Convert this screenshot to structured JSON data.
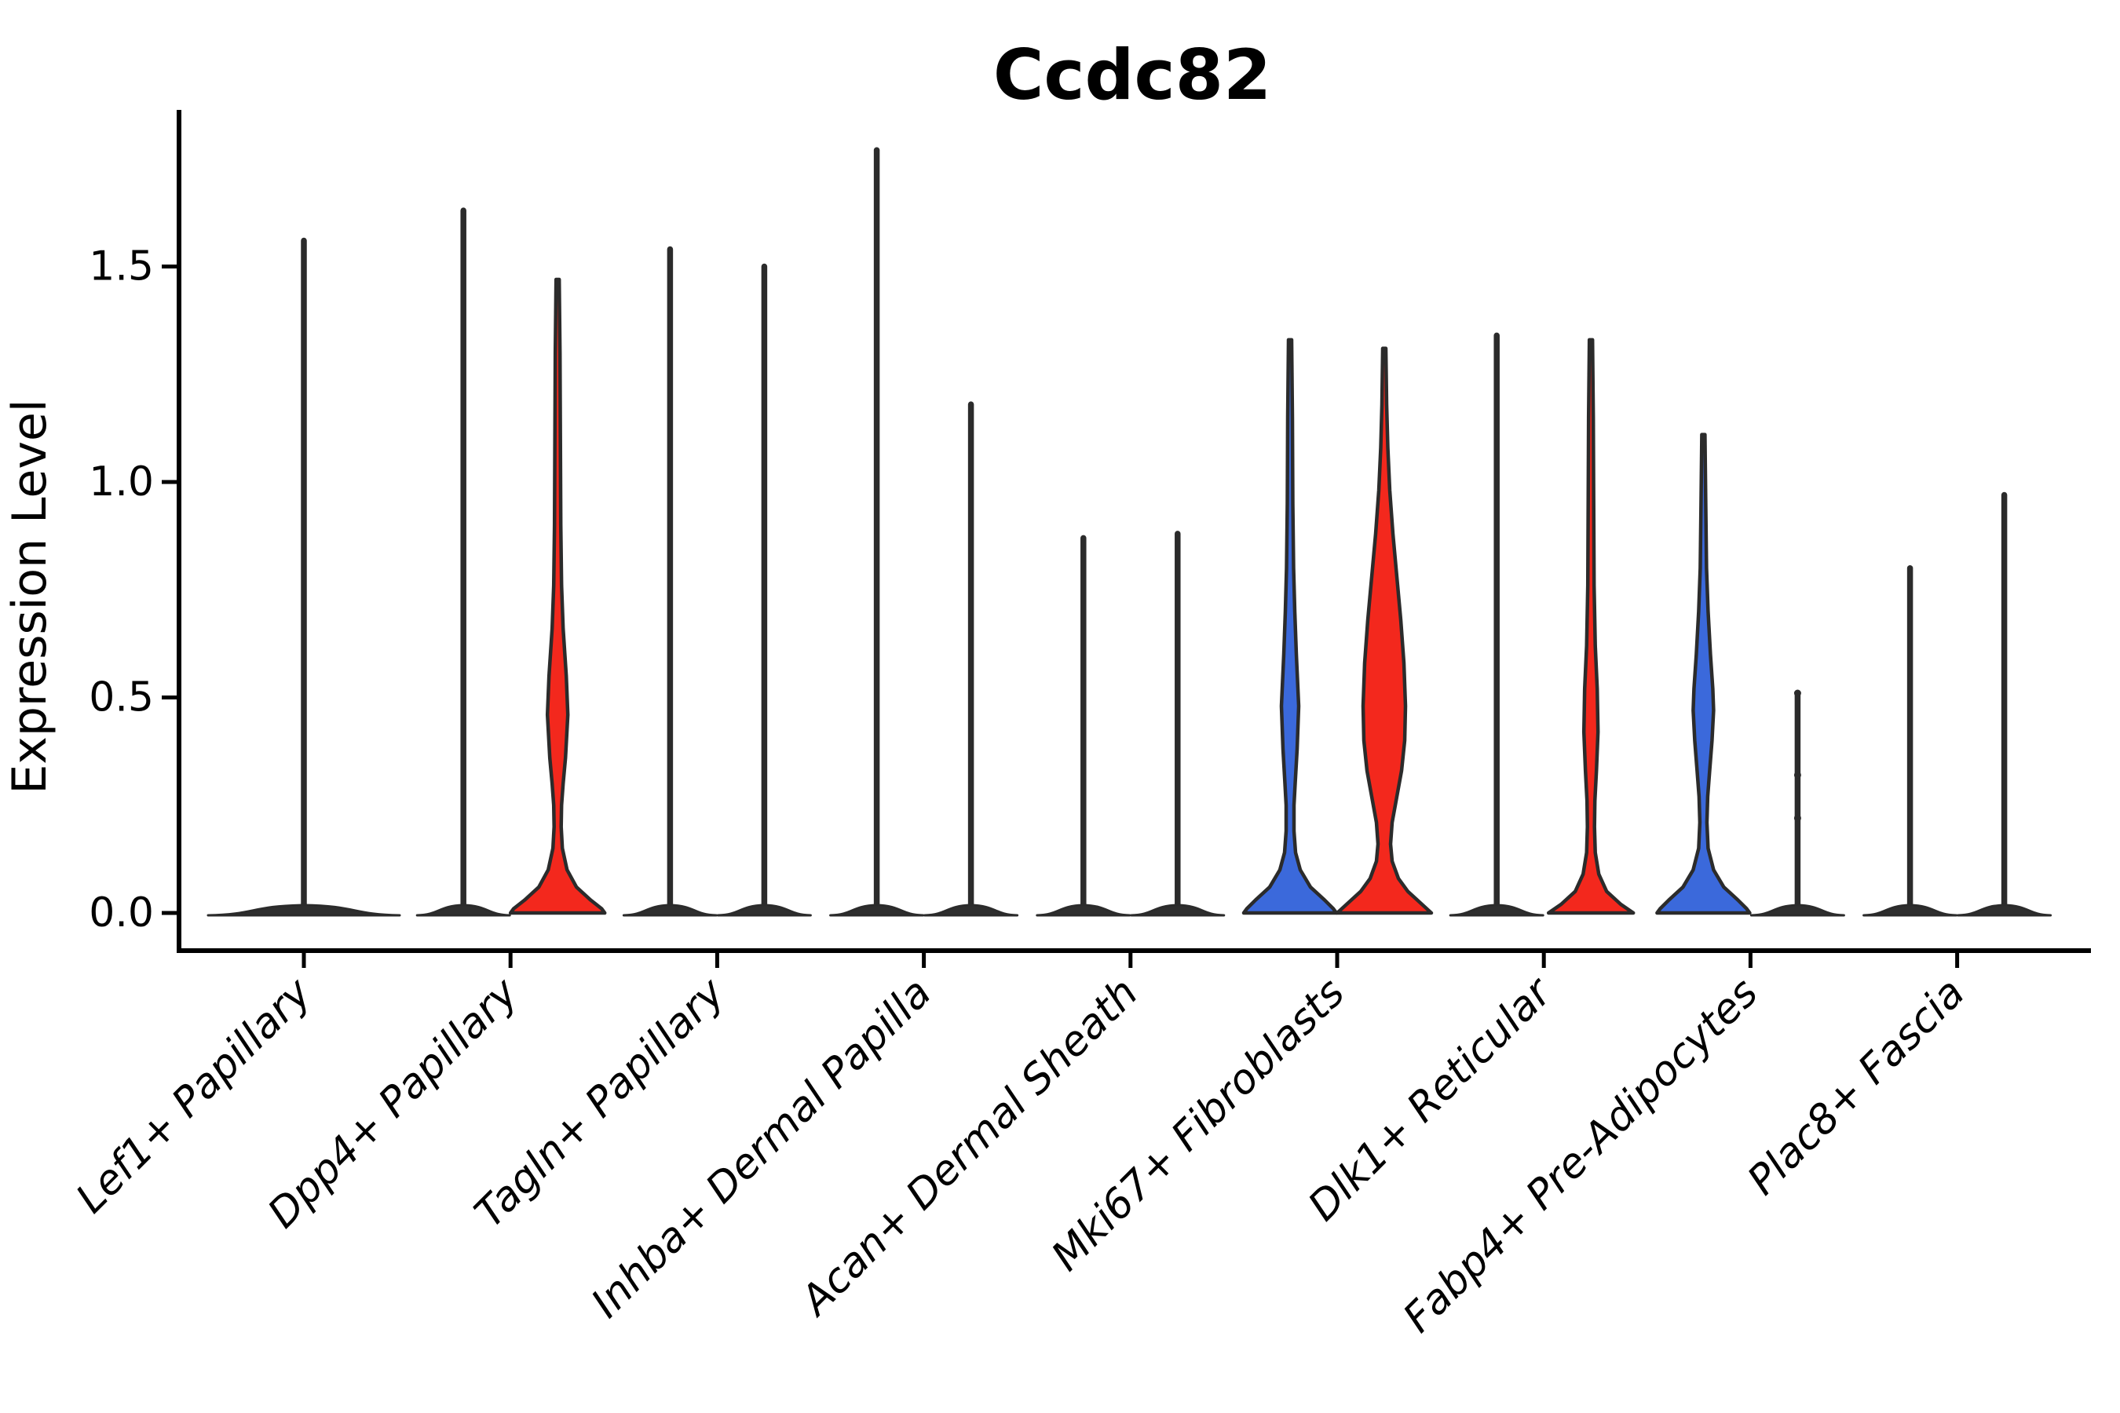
{
  "title": "Ccdc82",
  "axes": {
    "y_label": "Expression Level",
    "y_tick_labels": [
      "0.0",
      "0.5",
      "1.0",
      "1.5"
    ]
  },
  "chart_data": {
    "type": "violin",
    "title": "Ccdc82",
    "xlabel": "",
    "ylabel": "Expression Level",
    "ylim": [
      0,
      1.85
    ],
    "yticks": [
      0.0,
      0.5,
      1.0,
      1.5
    ],
    "grid": false,
    "legend": "none",
    "colors": {
      "red": "#F3281D",
      "blue": "#3B69DB",
      "line": "#2B2B2B",
      "base": "#2E2E2E",
      "spine": "#000000"
    },
    "categories": [
      {
        "label": "Lef1+ Papillary",
        "violins": [
          {
            "side": "center",
            "kind": "spike",
            "color_key": "line",
            "max": 1.56,
            "base_halfwidth": 122
          }
        ]
      },
      {
        "label": "Dpp4+ Papillary",
        "violins": [
          {
            "side": "left",
            "kind": "spike",
            "color_key": "line",
            "max": 1.63,
            "base_halfwidth": 59
          },
          {
            "side": "right",
            "kind": "violin",
            "color_key": "red",
            "max": 1.47,
            "profile": [
              [
                1.47,
                2
              ],
              [
                1.3,
                3
              ],
              [
                1.1,
                3.5
              ],
              [
                0.9,
                4
              ],
              [
                0.76,
                5
              ],
              [
                0.66,
                7
              ],
              [
                0.55,
                11
              ],
              [
                0.46,
                13
              ],
              [
                0.36,
                10
              ],
              [
                0.3,
                7
              ],
              [
                0.25,
                5
              ],
              [
                0.2,
                4.5
              ],
              [
                0.15,
                6
              ],
              [
                0.1,
                12
              ],
              [
                0.06,
                24
              ],
              [
                0.03,
                42
              ],
              [
                0.01,
                56
              ],
              [
                0,
                60
              ]
            ]
          }
        ]
      },
      {
        "label": "Tagln+ Papillary",
        "violins": [
          {
            "side": "left",
            "kind": "spike",
            "color_key": "line",
            "max": 1.54,
            "base_halfwidth": 59
          },
          {
            "side": "right",
            "kind": "spike",
            "color_key": "line",
            "max": 1.5,
            "base_halfwidth": 59
          }
        ]
      },
      {
        "label": "Inhba+ Dermal Papilla",
        "violins": [
          {
            "side": "left",
            "kind": "spike",
            "color_key": "line",
            "max": 1.77,
            "base_halfwidth": 59
          },
          {
            "side": "right",
            "kind": "spike",
            "color_key": "line",
            "max": 1.18,
            "base_halfwidth": 59
          }
        ]
      },
      {
        "label": "Acan+ Dermal Sheath",
        "violins": [
          {
            "side": "left",
            "kind": "spike",
            "color_key": "line",
            "max": 0.87,
            "base_halfwidth": 59
          },
          {
            "side": "right",
            "kind": "spike",
            "color_key": "line",
            "max": 0.88,
            "base_halfwidth": 59
          }
        ]
      },
      {
        "label": "Mki67+ Fibroblasts",
        "violins": [
          {
            "side": "left",
            "kind": "violin",
            "color_key": "blue",
            "max": 1.33,
            "profile": [
              [
                1.33,
                2
              ],
              [
                1.15,
                3
              ],
              [
                0.95,
                3.5
              ],
              [
                0.8,
                4.5
              ],
              [
                0.7,
                6
              ],
              [
                0.6,
                8
              ],
              [
                0.48,
                11
              ],
              [
                0.38,
                9
              ],
              [
                0.3,
                6.5
              ],
              [
                0.25,
                5
              ],
              [
                0.19,
                5
              ],
              [
                0.14,
                7
              ],
              [
                0.1,
                13
              ],
              [
                0.06,
                26
              ],
              [
                0.03,
                44
              ],
              [
                0.01,
                55
              ],
              [
                0,
                59
              ]
            ]
          },
          {
            "side": "right",
            "kind": "violin",
            "color_key": "red",
            "max": 1.31,
            "profile": [
              [
                1.31,
                2
              ],
              [
                1.18,
                3
              ],
              [
                1.08,
                4.5
              ],
              [
                0.98,
                7
              ],
              [
                0.88,
                11
              ],
              [
                0.78,
                16
              ],
              [
                0.68,
                21
              ],
              [
                0.58,
                25
              ],
              [
                0.48,
                27
              ],
              [
                0.4,
                26
              ],
              [
                0.33,
                22
              ],
              [
                0.27,
                16
              ],
              [
                0.21,
                10
              ],
              [
                0.16,
                8
              ],
              [
                0.12,
                10
              ],
              [
                0.08,
                18
              ],
              [
                0.05,
                30
              ],
              [
                0.02,
                48
              ],
              [
                0,
                60
              ]
            ]
          }
        ]
      },
      {
        "label": "Dlk1+ Reticular",
        "violins": [
          {
            "side": "left",
            "kind": "spike",
            "color_key": "line",
            "max": 1.34,
            "base_halfwidth": 59
          },
          {
            "side": "right",
            "kind": "violin",
            "color_key": "red",
            "max": 1.33,
            "profile": [
              [
                1.33,
                2
              ],
              [
                1.15,
                3
              ],
              [
                0.95,
                3.5
              ],
              [
                0.76,
                4
              ],
              [
                0.62,
                5.5
              ],
              [
                0.52,
                8
              ],
              [
                0.42,
                9
              ],
              [
                0.33,
                7
              ],
              [
                0.26,
                5
              ],
              [
                0.2,
                4.5
              ],
              [
                0.14,
                5.5
              ],
              [
                0.09,
                10
              ],
              [
                0.05,
                20
              ],
              [
                0.02,
                38
              ],
              [
                0,
                54
              ]
            ]
          }
        ]
      },
      {
        "label": "Fabp4+ Pre-Adipocytes",
        "violins": [
          {
            "side": "left",
            "kind": "violin",
            "color_key": "blue",
            "max": 1.11,
            "profile": [
              [
                1.11,
                2
              ],
              [
                0.95,
                3
              ],
              [
                0.8,
                4
              ],
              [
                0.7,
                6
              ],
              [
                0.6,
                9
              ],
              [
                0.52,
                12
              ],
              [
                0.47,
                13
              ],
              [
                0.4,
                11
              ],
              [
                0.33,
                8
              ],
              [
                0.27,
                5.5
              ],
              [
                0.21,
                4.5
              ],
              [
                0.15,
                6
              ],
              [
                0.1,
                13
              ],
              [
                0.06,
                26
              ],
              [
                0.03,
                44
              ],
              [
                0.01,
                55
              ],
              [
                0,
                59
              ]
            ]
          },
          {
            "side": "right",
            "kind": "spike",
            "color_key": "line",
            "max": 0.51,
            "base_halfwidth": 59,
            "knobs": [
              0.51,
              0.32,
              0.22
            ]
          }
        ]
      },
      {
        "label": "Plac8+ Fascia",
        "violins": [
          {
            "side": "left",
            "kind": "spike",
            "color_key": "line",
            "max": 0.8,
            "base_halfwidth": 59
          },
          {
            "side": "right",
            "kind": "spike",
            "color_key": "line",
            "max": 0.97,
            "base_halfwidth": 59
          }
        ]
      }
    ]
  }
}
